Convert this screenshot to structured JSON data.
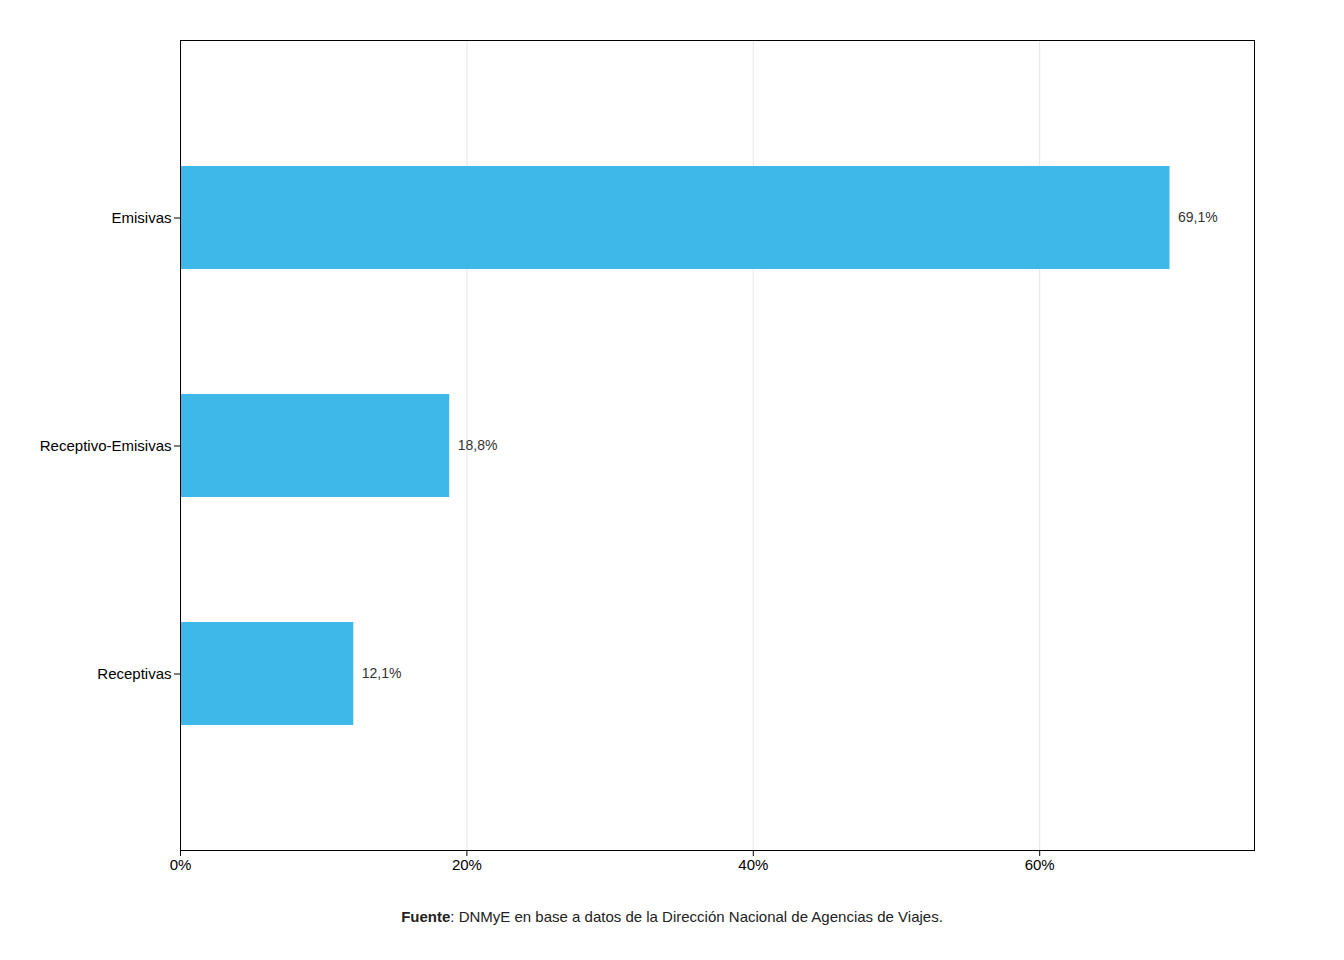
{
  "chart_data": {
    "type": "bar",
    "orientation": "horizontal",
    "categories": [
      "Receptivas",
      "Receptivo-Emisivas",
      "Emisivas"
    ],
    "values": [
      12.1,
      18.8,
      69.1
    ],
    "value_labels": [
      "12,1%",
      "18,8%",
      "69,1%"
    ],
    "data_labels": true,
    "color": "#3db8e8",
    "xlim": [
      0,
      75
    ],
    "xticks": [
      {
        "value": 0,
        "label": "0%"
      },
      {
        "value": 20,
        "label": "20%"
      },
      {
        "value": 40,
        "label": "40%"
      },
      {
        "value": 60,
        "label": "60%"
      }
    ],
    "grid": true,
    "caption": "Fuente: DNMyE en base a datos de la Dirección Nacional de Agencias de Viajes."
  }
}
